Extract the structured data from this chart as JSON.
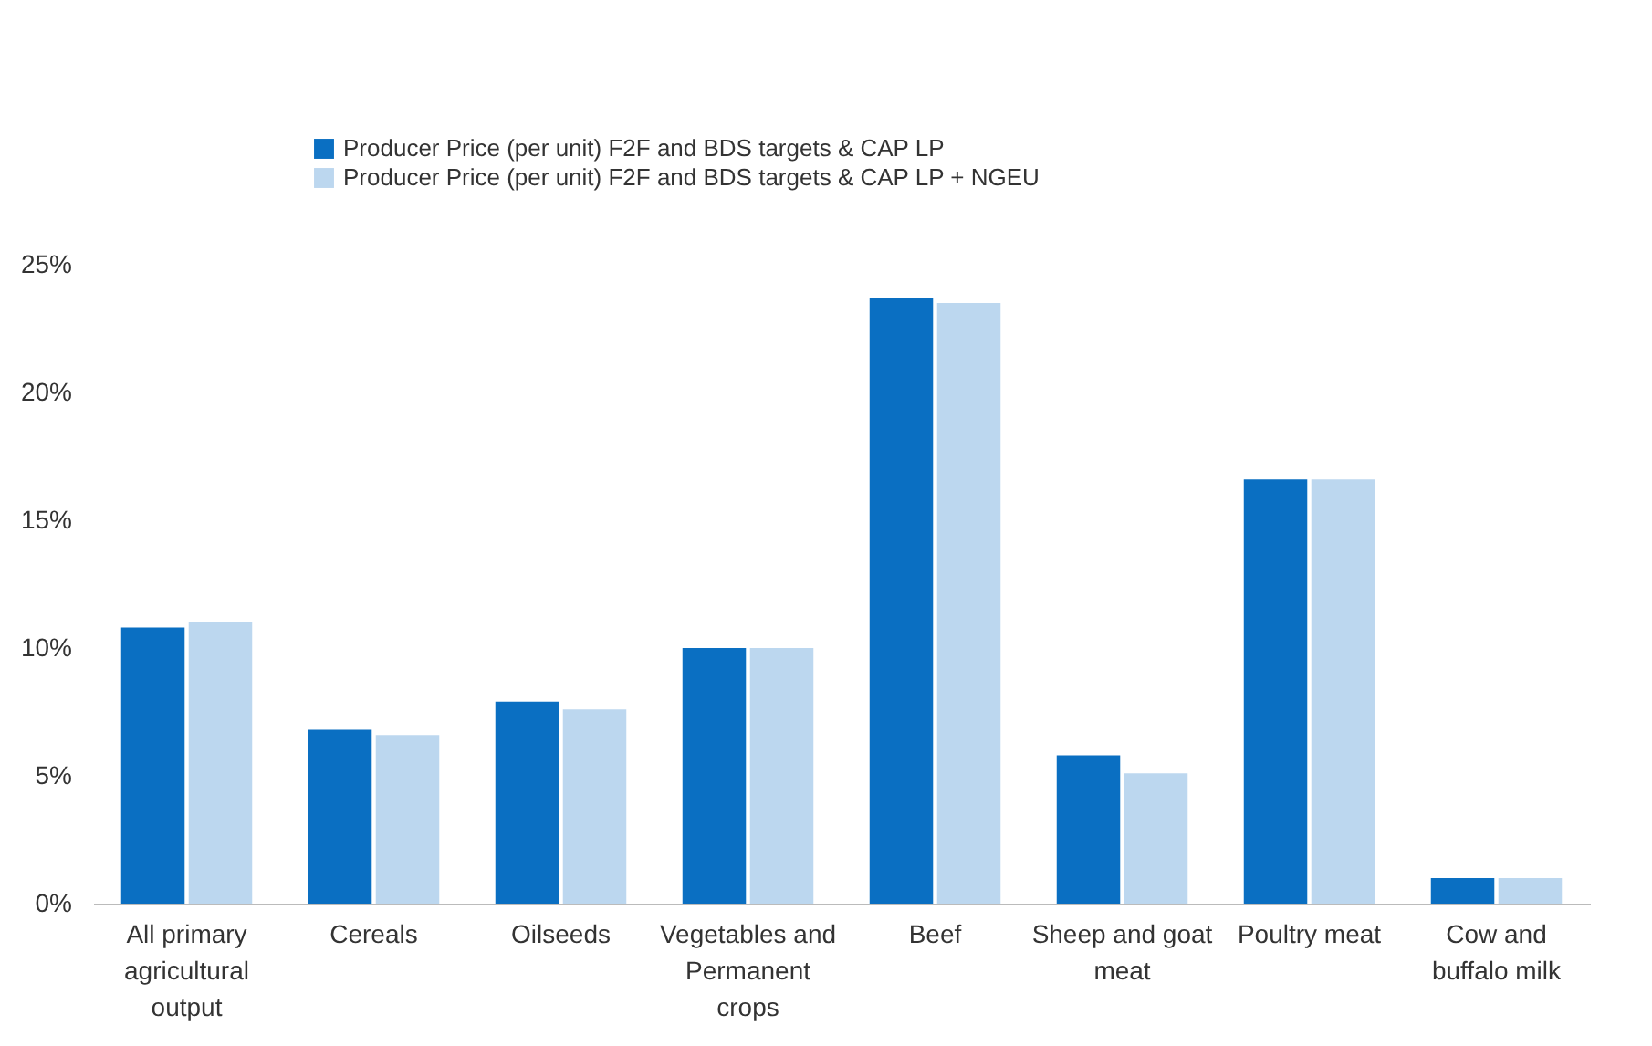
{
  "chart_data": {
    "type": "bar",
    "categories": [
      "All primary agricultural output",
      "Cereals",
      "Oilseeds",
      "Vegetables and Permanent crops",
      "Beef",
      "Sheep and goat meat",
      "Poultry meat",
      "Cow and buffalo milk"
    ],
    "series": [
      {
        "name": "Producer Price (per unit) F2F and BDS targets & CAP LP",
        "color": "#0a6fc2",
        "values": [
          10.8,
          6.8,
          7.9,
          10.0,
          23.7,
          5.8,
          16.6,
          1.0
        ]
      },
      {
        "name": "Producer Price (per unit) F2F and BDS targets & CAP LP + NGEU",
        "color": "#bcd7ef",
        "values": [
          11.0,
          6.6,
          7.6,
          10.0,
          23.5,
          5.1,
          16.6,
          1.0
        ]
      }
    ],
    "ylim": [
      0,
      25
    ],
    "yticks": [
      {
        "value": 0,
        "label": "0%"
      },
      {
        "value": 5,
        "label": "5%"
      },
      {
        "value": 10,
        "label": "10%"
      },
      {
        "value": 15,
        "label": "15%"
      },
      {
        "value": 20,
        "label": "20%"
      },
      {
        "value": 25,
        "label": "25%"
      }
    ],
    "grid": false,
    "legend": "top left"
  }
}
